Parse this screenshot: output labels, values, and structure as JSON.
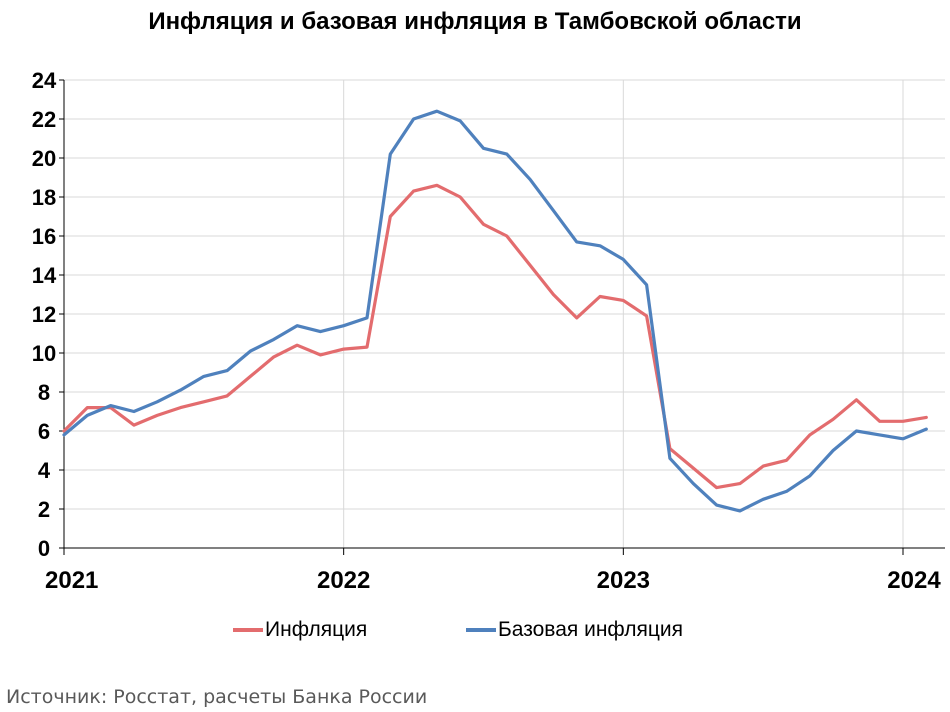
{
  "chart_data": {
    "type": "line",
    "title": "Инфляция и базовая инфляция в Тамбовской области",
    "xlabel": "",
    "ylabel": "",
    "ylim": [
      0,
      24
    ],
    "yticks": [
      "0",
      "2",
      "4",
      "6",
      "8",
      "10",
      "12",
      "14",
      "16",
      "18",
      "20",
      "22",
      "24"
    ],
    "xlim": [
      "2021-01",
      "2024-02"
    ],
    "xticks": [
      "2021",
      "2022",
      "2023",
      "2024"
    ],
    "grid": true,
    "legend_position": "bottom",
    "x": [
      "2021-01",
      "2021-02",
      "2021-03",
      "2021-04",
      "2021-05",
      "2021-06",
      "2021-07",
      "2021-08",
      "2021-09",
      "2021-10",
      "2021-11",
      "2021-12",
      "2022-01",
      "2022-02",
      "2022-03",
      "2022-04",
      "2022-05",
      "2022-06",
      "2022-07",
      "2022-08",
      "2022-09",
      "2022-10",
      "2022-11",
      "2022-12",
      "2023-01",
      "2023-02",
      "2023-03",
      "2023-04",
      "2023-05",
      "2023-06",
      "2023-07",
      "2023-08",
      "2023-09",
      "2023-10",
      "2023-11",
      "2023-12",
      "2024-01",
      "2024-02"
    ],
    "series": [
      {
        "name": "Инфляция",
        "color": "#E36C6E",
        "values": [
          6.0,
          7.2,
          7.2,
          6.3,
          6.8,
          7.2,
          7.5,
          7.8,
          8.8,
          9.8,
          10.4,
          9.9,
          10.2,
          10.3,
          17.0,
          18.3,
          18.6,
          18.0,
          16.6,
          16.0,
          14.5,
          13.0,
          11.8,
          12.9,
          12.7,
          11.9,
          5.1,
          4.1,
          3.1,
          3.3,
          4.2,
          4.5,
          5.8,
          6.6,
          7.6,
          6.5,
          6.5,
          6.7
        ]
      },
      {
        "name": "Базовая инфляция",
        "color": "#4F81BD",
        "values": [
          5.8,
          6.8,
          7.3,
          7.0,
          7.5,
          8.1,
          8.8,
          9.1,
          10.1,
          10.7,
          11.4,
          11.1,
          11.4,
          11.8,
          20.2,
          22.0,
          22.4,
          21.9,
          20.5,
          20.2,
          18.9,
          17.3,
          15.7,
          15.5,
          14.8,
          13.5,
          4.6,
          3.3,
          2.2,
          1.9,
          2.5,
          2.9,
          3.7,
          5.0,
          6.0,
          5.8,
          5.6,
          6.1
        ]
      }
    ]
  },
  "source": "Источник: Росстат, расчеты Банка России"
}
